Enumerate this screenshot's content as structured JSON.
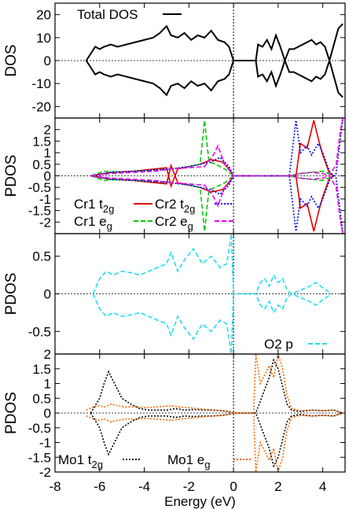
{
  "chart_data": [
    {
      "type": "line",
      "ylabel": "DOS",
      "xlim": [
        -8,
        5
      ],
      "ylim": [
        -25,
        25
      ],
      "yticks": [
        "20",
        "10",
        "0",
        "-10",
        "-20"
      ],
      "ytick_values": [
        20,
        10,
        0,
        -10,
        -20
      ],
      "legend": {
        "placement": "top-left"
      },
      "series": [
        {
          "name": "Total DOS",
          "color": "#000000",
          "style": "solid",
          "x": [
            -6.6,
            -6.4,
            -6.2,
            -6.0,
            -5.8,
            -5.5,
            -5.2,
            -4.8,
            -4.4,
            -4.0,
            -3.6,
            -3.3,
            -3.0,
            -2.8,
            -2.5,
            -2.2,
            -1.9,
            -1.6,
            -1.3,
            -1.0,
            -0.7,
            -0.4,
            -0.2,
            0.0,
            1.0,
            1.1,
            1.3,
            1.5,
            1.7,
            1.9,
            2.1,
            2.3,
            2.5,
            2.7,
            2.9,
            3.1,
            3.3,
            3.5,
            3.7,
            3.9,
            4.1,
            4.3,
            4.5,
            4.7,
            4.9
          ],
          "y": [
            0,
            3,
            6,
            5,
            6,
            7,
            6,
            7,
            8,
            9,
            10,
            12,
            15,
            11,
            10,
            12,
            9,
            11,
            10,
            13,
            9,
            8,
            6,
            0,
            0,
            7,
            6,
            9,
            5,
            11,
            6,
            0,
            5,
            5,
            6,
            7,
            8,
            9,
            7,
            8,
            6,
            0,
            7,
            14,
            16
          ]
        }
      ]
    },
    {
      "type": "line",
      "ylabel": "PDOS",
      "xlim": [
        -8,
        5
      ],
      "ylim": [
        -2.5,
        2.5
      ],
      "yticks": [
        "2",
        "1.5",
        "1",
        "0.5",
        "0",
        "-0.5",
        "-1",
        "-1.5",
        "-2"
      ],
      "ytick_values": [
        2,
        1.5,
        1,
        0.5,
        0,
        -0.5,
        -1,
        -1.5,
        -2
      ],
      "legend": {
        "placement": "lower-left"
      },
      "series": [
        {
          "name": "Cr1 t2g",
          "color": "#dd0000",
          "style": "solid",
          "x": [
            -6.4,
            -5.5,
            -4.5,
            -3.5,
            -3.0,
            -2.8,
            -2.5,
            -2.0,
            -1.5,
            -1.0,
            -0.5,
            -0.2,
            0.0,
            2.5,
            2.8,
            3.0,
            3.3,
            3.6,
            3.8,
            4.0,
            4.3,
            4.5
          ],
          "y": [
            0,
            0.15,
            0.2,
            0.3,
            0.35,
            -0.45,
            0.3,
            0.4,
            0.5,
            0.7,
            0.6,
            0.3,
            0,
            0,
            0,
            1.4,
            1.2,
            2.4,
            1.6,
            0.9,
            0.1,
            0
          ]
        },
        {
          "name": "Cr1 eg",
          "color": "#00cc00",
          "style": "dashed",
          "x": [
            -6.4,
            -5.8,
            -5.0,
            -4.2,
            -3.5,
            -2.8,
            -2.0,
            -1.5,
            -1.3,
            -1.1,
            -0.8,
            -0.4,
            0.0,
            2.5,
            3.0,
            3.5,
            4.0,
            4.5
          ],
          "y": [
            0,
            0.2,
            0.15,
            0.2,
            0.25,
            0.3,
            0.4,
            0.5,
            2.4,
            0.6,
            0.5,
            0.3,
            0,
            0,
            0.1,
            0.15,
            0.2,
            0
          ]
        },
        {
          "name": "Cr2 t2g",
          "color": "#0000ee",
          "style": "dotted",
          "x": [
            -6.4,
            -5.5,
            -4.5,
            -3.5,
            -2.8,
            -2.0,
            -1.5,
            -1.0,
            -0.6,
            -0.2,
            0.0,
            2.5,
            2.8,
            3.0,
            3.3,
            3.5,
            3.8,
            4.0,
            4.3,
            4.6,
            4.9
          ],
          "y": [
            0,
            0.15,
            0.2,
            0.25,
            0.3,
            0.4,
            0.5,
            0.6,
            0.8,
            0.4,
            0,
            0,
            2.4,
            1.0,
            1.3,
            0.9,
            1.4,
            1.0,
            0.2,
            -0.1,
            -2.5
          ]
        },
        {
          "name": "Cr2 eg",
          "color": "#ee00ee",
          "style": "dashed",
          "x": [
            -6.4,
            -5.5,
            -4.5,
            -3.5,
            -2.8,
            -2.0,
            -1.3,
            -0.9,
            -0.7,
            -0.4,
            0.0,
            2.5,
            3.0,
            3.5,
            4.0,
            4.3,
            4.6,
            4.8,
            4.9
          ],
          "y": [
            0,
            0.1,
            0.15,
            0.2,
            0.3,
            0.35,
            0.4,
            0.9,
            1.3,
            0.5,
            0,
            0,
            0.1,
            0.15,
            0.1,
            0,
            -0.5,
            -2.0,
            -2.5
          ]
        }
      ]
    },
    {
      "type": "line",
      "ylabel": "PDOS",
      "xlim": [
        -8,
        5
      ],
      "ylim": [
        -0.8,
        0.8
      ],
      "yticks": [
        "0.5",
        "0",
        "-0.5"
      ],
      "ytick_values": [
        0.5,
        0,
        -0.5
      ],
      "legend": {
        "placement": "lower-right"
      },
      "series": [
        {
          "name": "O2 p",
          "color": "#22ddee",
          "style": "dashed",
          "x": [
            -6.3,
            -6.0,
            -5.7,
            -5.4,
            -5.0,
            -4.6,
            -4.2,
            -3.8,
            -3.4,
            -3.0,
            -2.8,
            -2.5,
            -2.2,
            -1.8,
            -1.4,
            -1.0,
            -0.6,
            -0.3,
            -0.1,
            0.0,
            1.0,
            1.2,
            1.4,
            1.6,
            1.8,
            2.0,
            2.2,
            2.4,
            2.6,
            3.0,
            3.4,
            3.7,
            4.0,
            4.4
          ],
          "y": [
            0,
            0.2,
            0.3,
            0.25,
            0.3,
            0.28,
            0.25,
            0.3,
            0.35,
            0.4,
            0.55,
            0.3,
            0.45,
            0.6,
            0.4,
            0.5,
            0.35,
            0.4,
            0.8,
            0,
            0,
            0.15,
            0.2,
            0.1,
            0.25,
            0.15,
            0.2,
            0.05,
            0,
            0.05,
            0.1,
            0.15,
            0.08,
            0
          ]
        }
      ]
    },
    {
      "type": "line",
      "ylabel": "PDOS",
      "xlabel": "Energy (eV)",
      "xlim": [
        -8,
        5
      ],
      "ylim": [
        -2,
        2
      ],
      "xticks": [
        "-8",
        "-6",
        "-4",
        "-2",
        "0",
        "2",
        "4"
      ],
      "xtick_values": [
        -8,
        -6,
        -4,
        -2,
        0,
        2,
        4
      ],
      "yticks": [
        "2",
        "1.5",
        "1",
        "0.5",
        "0",
        "-0.5",
        "-1",
        "-1.5",
        "-2"
      ],
      "ytick_values": [
        2,
        1.5,
        1,
        0.5,
        0,
        -0.5,
        -1,
        -1.5,
        -2
      ],
      "legend": {
        "placement": "bottom"
      },
      "series": [
        {
          "name": "Mo1 t2g",
          "color": "#000000",
          "style": "dotted",
          "x": [
            -6.4,
            -6.0,
            -5.8,
            -5.6,
            -5.4,
            -5.2,
            -5.0,
            -4.6,
            -4.2,
            -3.8,
            -3.4,
            -3.0,
            -2.6,
            -2.2,
            -1.8,
            -1.4,
            -1.0,
            -0.6,
            -0.2,
            0.0,
            1.0,
            1.2,
            1.4,
            1.6,
            1.8,
            2.0,
            2.2,
            2.4,
            2.6,
            3.0,
            3.5,
            4.0,
            4.5,
            4.9
          ],
          "y": [
            0,
            0.5,
            1.0,
            1.4,
            1.1,
            0.8,
            0.5,
            0.3,
            0.15,
            0.1,
            0.1,
            0.1,
            0.15,
            0.1,
            0.12,
            0.1,
            0.1,
            0.08,
            0.05,
            0,
            0,
            0.4,
            0.8,
            1.2,
            1.8,
            1.5,
            0.9,
            0.3,
            0.1,
            0.05,
            0.1,
            0.08,
            0.1,
            0
          ]
        },
        {
          "name": "Mo1 eg",
          "color": "#ff6600",
          "style": "dotted",
          "x": [
            -6.6,
            -6.3,
            -6.0,
            -5.8,
            -5.5,
            -5.2,
            -4.8,
            -4.4,
            -4.0,
            -3.6,
            -3.2,
            -2.8,
            -2.4,
            -2.0,
            -1.6,
            -1.2,
            -0.8,
            -0.4,
            0.0,
            0.9,
            1.0,
            1.2,
            1.4,
            1.6,
            1.8,
            2.0,
            2.2,
            2.4,
            2.6,
            3.0,
            3.5,
            4.0,
            4.5,
            4.9
          ],
          "y": [
            0.1,
            0.2,
            0.25,
            0.2,
            0.3,
            0.25,
            0.2,
            0.22,
            0.18,
            0.2,
            0.22,
            0.25,
            0.2,
            0.18,
            0.15,
            0.12,
            0.1,
            0.08,
            0,
            0,
            2.0,
            1.0,
            1.3,
            1.6,
            1.2,
            2.0,
            1.5,
            0.6,
            0.15,
            0.08,
            0.1,
            0.08,
            0.1,
            0
          ]
        }
      ]
    }
  ]
}
